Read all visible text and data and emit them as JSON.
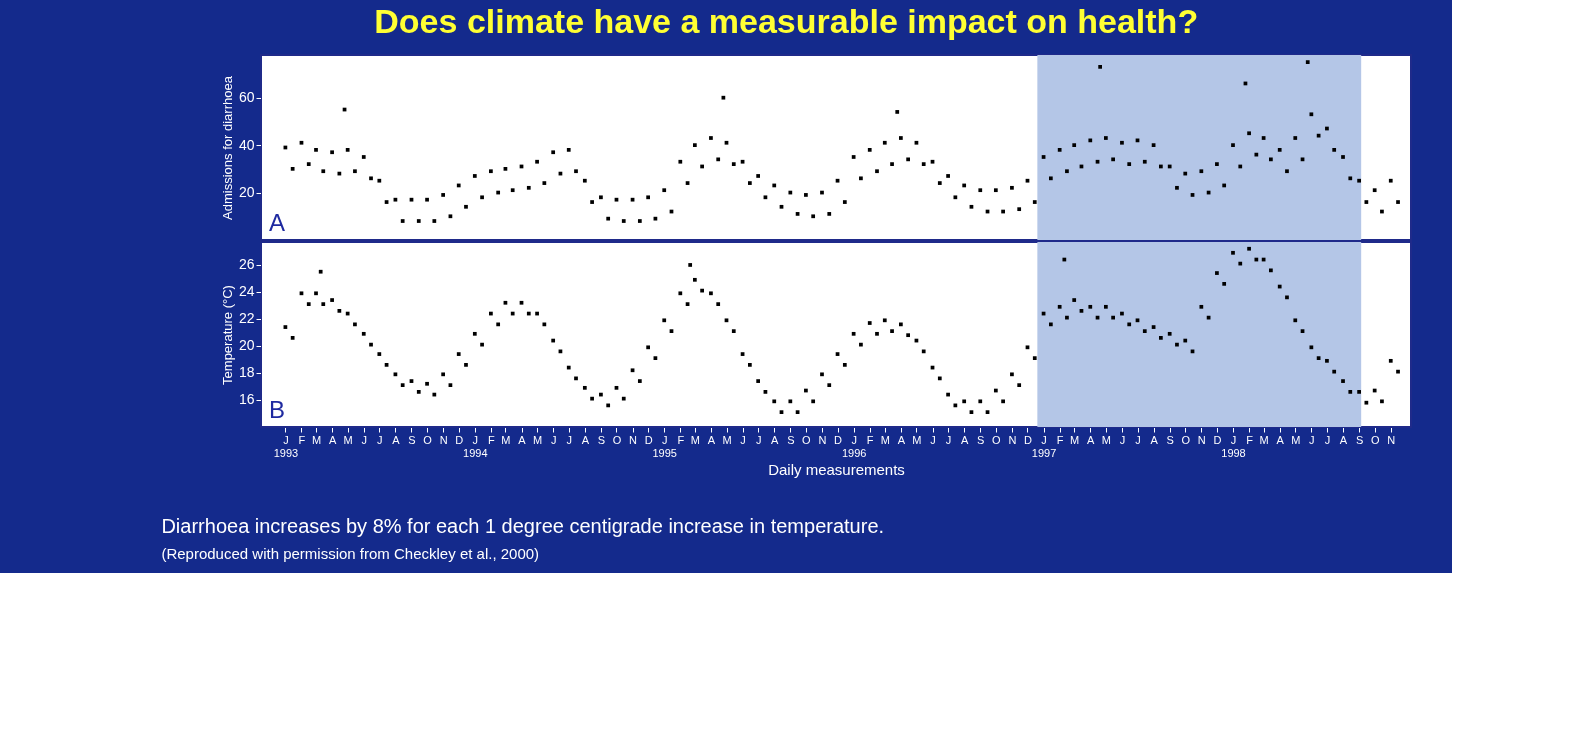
{
  "chart_data": [
    {
      "type": "scatter",
      "title": "Does climate have a measurable impact on health?",
      "ylabel": "Admissions for diarrhoea",
      "annotations": [
        "A"
      ],
      "marker": "square",
      "tick_labels": "y",
      "grid": false,
      "xlim": [
        "1992-11-15",
        "1998-12-10"
      ],
      "ylim": [
        0,
        78
      ],
      "yticks": [
        20,
        40,
        60
      ],
      "bands": [
        {
          "axis": "x",
          "from": "1996-12-20",
          "to": "1998-09-05",
          "color": "#b4c6e7"
        }
      ],
      "series": [
        {
          "color": "#000000",
          "x": [
            "1993-01-01",
            "1993-01-15",
            "1993-02-01",
            "1993-02-15",
            "1993-03-01",
            "1993-03-15",
            "1993-04-01",
            "1993-04-15",
            "1993-05-01",
            "1993-05-15",
            "1993-06-01",
            "1993-06-15",
            "1993-07-01",
            "1993-07-15",
            "1993-08-01",
            "1993-08-15",
            "1993-09-01",
            "1993-09-15",
            "1993-10-01",
            "1993-10-15",
            "1993-11-01",
            "1993-11-15",
            "1993-12-01",
            "1993-12-15",
            "1994-01-01",
            "1994-01-15",
            "1994-02-01",
            "1994-02-15",
            "1994-03-01",
            "1994-03-15",
            "1994-04-01",
            "1994-04-15",
            "1994-05-01",
            "1994-05-15",
            "1994-06-01",
            "1994-06-15",
            "1994-07-01",
            "1994-07-15",
            "1994-08-01",
            "1994-08-15",
            "1994-09-01",
            "1994-09-15",
            "1994-10-01",
            "1994-10-15",
            "1994-11-01",
            "1994-11-15",
            "1994-12-01",
            "1994-12-15",
            "1995-01-01",
            "1995-01-15",
            "1995-02-01",
            "1995-02-15",
            "1995-03-01",
            "1995-03-15",
            "1995-04-01",
            "1995-04-15",
            "1995-05-01",
            "1995-05-15",
            "1995-06-01",
            "1995-06-15",
            "1995-07-01",
            "1995-07-15",
            "1995-08-01",
            "1995-08-15",
            "1995-09-01",
            "1995-09-15",
            "1995-10-01",
            "1995-10-15",
            "1995-11-01",
            "1995-11-15",
            "1995-12-01",
            "1995-12-15",
            "1996-01-01",
            "1996-01-15",
            "1996-02-01",
            "1996-02-15",
            "1996-03-01",
            "1996-03-15",
            "1996-04-01",
            "1996-04-15",
            "1996-05-01",
            "1996-05-15",
            "1996-06-01",
            "1996-06-15",
            "1996-07-01",
            "1996-07-15",
            "1996-08-01",
            "1996-08-15",
            "1996-09-01",
            "1996-09-15",
            "1996-10-01",
            "1996-10-15",
            "1996-11-01",
            "1996-11-15",
            "1996-12-01",
            "1996-12-15",
            "1997-01-01",
            "1997-01-15",
            "1997-02-01",
            "1997-02-15",
            "1997-03-01",
            "1997-03-15",
            "1997-04-01",
            "1997-04-15",
            "1997-05-01",
            "1997-05-15",
            "1997-06-01",
            "1997-06-15",
            "1997-07-01",
            "1997-07-15",
            "1997-08-01",
            "1997-08-15",
            "1997-09-01",
            "1997-09-15",
            "1997-10-01",
            "1997-10-15",
            "1997-11-01",
            "1997-11-15",
            "1997-12-01",
            "1997-12-15",
            "1998-01-01",
            "1998-01-15",
            "1998-02-01",
            "1998-02-15",
            "1998-03-01",
            "1998-03-15",
            "1998-04-01",
            "1998-04-15",
            "1998-05-01",
            "1998-05-15",
            "1998-06-01",
            "1998-06-15",
            "1998-07-01",
            "1998-07-15",
            "1998-08-01",
            "1998-08-15",
            "1998-09-01",
            "1998-09-15",
            "1998-10-01",
            "1998-10-15",
            "1998-11-01",
            "1998-11-15",
            "1993-04-25",
            "1995-04-25",
            "1997-04-20",
            "1998-01-25",
            "1998-05-25",
            "1996-03-25"
          ],
          "values": [
            39,
            30,
            41,
            32,
            38,
            29,
            37,
            28,
            38,
            29,
            35,
            26,
            25,
            16,
            17,
            8,
            17,
            8,
            17,
            8,
            19,
            10,
            23,
            14,
            27,
            18,
            29,
            20,
            30,
            21,
            31,
            22,
            33,
            24,
            37,
            28,
            38,
            29,
            25,
            16,
            18,
            9,
            17,
            8,
            17,
            8,
            18,
            9,
            21,
            12,
            33,
            24,
            40,
            31,
            43,
            34,
            41,
            32,
            33,
            24,
            27,
            18,
            23,
            14,
            20,
            11,
            19,
            10,
            20,
            11,
            25,
            16,
            35,
            26,
            38,
            29,
            41,
            32,
            43,
            34,
            41,
            32,
            33,
            24,
            27,
            18,
            23,
            14,
            21,
            12,
            21,
            12,
            22,
            13,
            25,
            16,
            35,
            26,
            38,
            29,
            40,
            31,
            42,
            33,
            43,
            34,
            41,
            32,
            42,
            33,
            40,
            31,
            31,
            22,
            28,
            19,
            29,
            20,
            32,
            23,
            40,
            31,
            45,
            36,
            43,
            34,
            38,
            29,
            43,
            34,
            53,
            44,
            47,
            38,
            35,
            26,
            25,
            16,
            21,
            12,
            25,
            16,
            55,
            60,
            73,
            66,
            75,
            54
          ]
        }
      ]
    },
    {
      "type": "scatter",
      "ylabel": "Temperature (°C)",
      "xlabel": "Daily measurements",
      "annotations": [
        "B",
        "Diarrhoea increases by 8% for each 1 degree centigrade increase in temperature.",
        "(Reproduced with permission  from Checkley et al., 2000)"
      ],
      "marker": "square",
      "grid": false,
      "xlim": [
        "1992-11-15",
        "1998-12-10"
      ],
      "ylim": [
        14,
        27.7
      ],
      "yticks": [
        16,
        18,
        20,
        22,
        24,
        26
      ],
      "xticks": [
        {
          "value": "1993-01-01",
          "label": "J\n1993"
        },
        {
          "value": "1993-02-01",
          "label": "F"
        },
        {
          "value": "1993-03-01",
          "label": "M"
        },
        {
          "value": "1993-04-01",
          "label": "A"
        },
        {
          "value": "1993-05-01",
          "label": "M"
        },
        {
          "value": "1993-06-01",
          "label": "J"
        },
        {
          "value": "1993-07-01",
          "label": "J"
        },
        {
          "value": "1993-08-01",
          "label": "A"
        },
        {
          "value": "1993-09-01",
          "label": "S"
        },
        {
          "value": "1993-10-01",
          "label": "O"
        },
        {
          "value": "1993-11-01",
          "label": "N"
        },
        {
          "value": "1993-12-01",
          "label": "D"
        },
        {
          "value": "1994-01-01",
          "label": "J\n1994"
        },
        {
          "value": "1994-02-01",
          "label": "F"
        },
        {
          "value": "1994-03-01",
          "label": "M"
        },
        {
          "value": "1994-04-01",
          "label": "A"
        },
        {
          "value": "1994-05-01",
          "label": "M"
        },
        {
          "value": "1994-06-01",
          "label": "J"
        },
        {
          "value": "1994-07-01",
          "label": "J"
        },
        {
          "value": "1994-08-01",
          "label": "A"
        },
        {
          "value": "1994-09-01",
          "label": "S"
        },
        {
          "value": "1994-10-01",
          "label": "O"
        },
        {
          "value": "1994-11-01",
          "label": "N"
        },
        {
          "value": "1994-12-01",
          "label": "D"
        },
        {
          "value": "1995-01-01",
          "label": "J\n1995"
        },
        {
          "value": "1995-02-01",
          "label": "F"
        },
        {
          "value": "1995-03-01",
          "label": "M"
        },
        {
          "value": "1995-04-01",
          "label": "A"
        },
        {
          "value": "1995-05-01",
          "label": "M"
        },
        {
          "value": "1995-06-01",
          "label": "J"
        },
        {
          "value": "1995-07-01",
          "label": "J"
        },
        {
          "value": "1995-08-01",
          "label": "A"
        },
        {
          "value": "1995-09-01",
          "label": "S"
        },
        {
          "value": "1995-10-01",
          "label": "O"
        },
        {
          "value": "1995-11-01",
          "label": "N"
        },
        {
          "value": "1995-12-01",
          "label": "D"
        },
        {
          "value": "1996-01-01",
          "label": "J\n1996"
        },
        {
          "value": "1996-02-01",
          "label": "F"
        },
        {
          "value": "1996-03-01",
          "label": "M"
        },
        {
          "value": "1996-04-01",
          "label": "A"
        },
        {
          "value": "1996-05-01",
          "label": "M"
        },
        {
          "value": "1996-06-01",
          "label": "J"
        },
        {
          "value": "1996-07-01",
          "label": "J"
        },
        {
          "value": "1996-08-01",
          "label": "A"
        },
        {
          "value": "1996-09-01",
          "label": "S"
        },
        {
          "value": "1996-10-01",
          "label": "O"
        },
        {
          "value": "1996-11-01",
          "label": "N"
        },
        {
          "value": "1996-12-01",
          "label": "D"
        },
        {
          "value": "1997-01-01",
          "label": "J\n1997"
        },
        {
          "value": "1997-02-01",
          "label": "F"
        },
        {
          "value": "1997-03-01",
          "label": "M"
        },
        {
          "value": "1997-04-01",
          "label": "A"
        },
        {
          "value": "1997-05-01",
          "label": "M"
        },
        {
          "value": "1997-06-01",
          "label": "J"
        },
        {
          "value": "1997-07-01",
          "label": "J"
        },
        {
          "value": "1997-08-01",
          "label": "A"
        },
        {
          "value": "1997-09-01",
          "label": "S"
        },
        {
          "value": "1997-10-01",
          "label": "O"
        },
        {
          "value": "1997-11-01",
          "label": "N"
        },
        {
          "value": "1997-12-01",
          "label": "D"
        },
        {
          "value": "1998-01-01",
          "label": "J\n1998"
        },
        {
          "value": "1998-02-01",
          "label": "F"
        },
        {
          "value": "1998-03-01",
          "label": "M"
        },
        {
          "value": "1998-04-01",
          "label": "A"
        },
        {
          "value": "1998-05-01",
          "label": "M"
        },
        {
          "value": "1998-06-01",
          "label": "J"
        },
        {
          "value": "1998-07-01",
          "label": "J"
        },
        {
          "value": "1998-08-01",
          "label": "A"
        },
        {
          "value": "1998-09-01",
          "label": "S"
        },
        {
          "value": "1998-10-01",
          "label": "O"
        },
        {
          "value": "1998-11-01",
          "label": "N"
        }
      ],
      "bands": [
        {
          "axis": "x",
          "from": "1996-12-20",
          "to": "1998-09-05",
          "color": "#b4c6e7"
        }
      ],
      "series": [
        {
          "color": "#000000",
          "x": [
            "1993-01-01",
            "1993-01-15",
            "1993-02-01",
            "1993-02-15",
            "1993-03-01",
            "1993-03-15",
            "1993-04-01",
            "1993-04-15",
            "1993-05-01",
            "1993-05-15",
            "1993-06-01",
            "1993-06-15",
            "1993-07-01",
            "1993-07-15",
            "1993-08-01",
            "1993-08-15",
            "1993-09-01",
            "1993-09-15",
            "1993-10-01",
            "1993-10-15",
            "1993-11-01",
            "1993-11-15",
            "1993-12-01",
            "1993-12-15",
            "1994-01-01",
            "1994-01-15",
            "1994-02-01",
            "1994-02-15",
            "1994-03-01",
            "1994-03-15",
            "1994-04-01",
            "1994-04-15",
            "1994-05-01",
            "1994-05-15",
            "1994-06-01",
            "1994-06-15",
            "1994-07-01",
            "1994-07-15",
            "1994-08-01",
            "1994-08-15",
            "1994-09-01",
            "1994-09-15",
            "1994-10-01",
            "1994-10-15",
            "1994-11-01",
            "1994-11-15",
            "1994-12-01",
            "1994-12-15",
            "1995-01-01",
            "1995-01-15",
            "1995-02-01",
            "1995-02-15",
            "1995-03-01",
            "1995-03-15",
            "1995-04-01",
            "1995-04-15",
            "1995-05-01",
            "1995-05-15",
            "1995-06-01",
            "1995-06-15",
            "1995-07-01",
            "1995-07-15",
            "1995-08-01",
            "1995-08-15",
            "1995-09-01",
            "1995-09-15",
            "1995-10-01",
            "1995-10-15",
            "1995-11-01",
            "1995-11-15",
            "1995-12-01",
            "1995-12-15",
            "1996-01-01",
            "1996-01-15",
            "1996-02-01",
            "1996-02-15",
            "1996-03-01",
            "1996-03-15",
            "1996-04-01",
            "1996-04-15",
            "1996-05-01",
            "1996-05-15",
            "1996-06-01",
            "1996-06-15",
            "1996-07-01",
            "1996-07-15",
            "1996-08-01",
            "1996-08-15",
            "1996-09-01",
            "1996-09-15",
            "1996-10-01",
            "1996-10-15",
            "1996-11-01",
            "1996-11-15",
            "1996-12-01",
            "1996-12-15",
            "1997-01-01",
            "1997-01-15",
            "1997-02-01",
            "1997-02-15",
            "1997-03-01",
            "1997-03-15",
            "1997-04-01",
            "1997-04-15",
            "1997-05-01",
            "1997-05-15",
            "1997-06-01",
            "1997-06-15",
            "1997-07-01",
            "1997-07-15",
            "1997-08-01",
            "1997-08-15",
            "1997-09-01",
            "1997-09-15",
            "1997-10-01",
            "1997-10-15",
            "1997-11-01",
            "1997-11-15",
            "1997-12-01",
            "1997-12-15",
            "1998-01-01",
            "1998-01-15",
            "1998-02-01",
            "1998-02-15",
            "1998-03-01",
            "1998-03-15",
            "1998-04-01",
            "1998-04-15",
            "1998-05-01",
            "1998-05-15",
            "1998-06-01",
            "1998-06-15",
            "1998-07-01",
            "1998-07-15",
            "1998-08-01",
            "1998-08-15",
            "1998-09-01",
            "1998-09-15",
            "1998-10-01",
            "1998-10-15",
            "1998-11-01",
            "1998-11-15",
            "1997-02-10",
            "1995-02-20",
            "1993-03-10"
          ],
          "values": [
            21.4,
            20.6,
            23.9,
            23.1,
            23.9,
            23.1,
            23.4,
            22.6,
            22.4,
            21.6,
            20.9,
            20.1,
            19.4,
            18.6,
            17.9,
            17.1,
            17.4,
            16.6,
            17.2,
            16.4,
            17.9,
            17.1,
            19.4,
            18.6,
            20.9,
            20.1,
            22.4,
            21.6,
            23.2,
            22.4,
            23.2,
            22.4,
            22.4,
            21.6,
            20.4,
            19.6,
            18.4,
            17.6,
            16.9,
            16.1,
            16.4,
            15.6,
            16.9,
            16.1,
            18.2,
            17.4,
            19.9,
            19.1,
            21.9,
            21.1,
            23.9,
            23.1,
            24.9,
            24.1,
            23.9,
            23.1,
            21.9,
            21.1,
            19.4,
            18.6,
            17.4,
            16.6,
            15.9,
            15.1,
            15.9,
            15.1,
            16.7,
            15.9,
            17.9,
            17.1,
            19.4,
            18.6,
            20.9,
            20.1,
            21.7,
            20.9,
            21.9,
            21.1,
            21.6,
            20.8,
            20.4,
            19.6,
            18.4,
            17.6,
            16.4,
            15.6,
            15.9,
            15.1,
            15.9,
            15.1,
            16.7,
            15.9,
            17.9,
            17.1,
            19.9,
            19.1,
            22.4,
            21.6,
            22.9,
            22.1,
            23.4,
            22.6,
            22.9,
            22.1,
            22.9,
            22.1,
            22.4,
            21.6,
            21.9,
            21.1,
            21.4,
            20.6,
            20.9,
            20.1,
            20.4,
            19.6,
            22.9,
            22.1,
            25.4,
            24.6,
            26.9,
            26.1,
            27.2,
            26.4,
            26.4,
            25.6,
            24.4,
            23.6,
            21.9,
            21.1,
            19.9,
            19.1,
            18.9,
            18.1,
            17.4,
            16.6,
            16.6,
            15.8,
            16.7,
            15.9,
            18.9,
            18.1,
            26.4,
            26.0,
            25.5
          ]
        }
      ]
    }
  ]
}
